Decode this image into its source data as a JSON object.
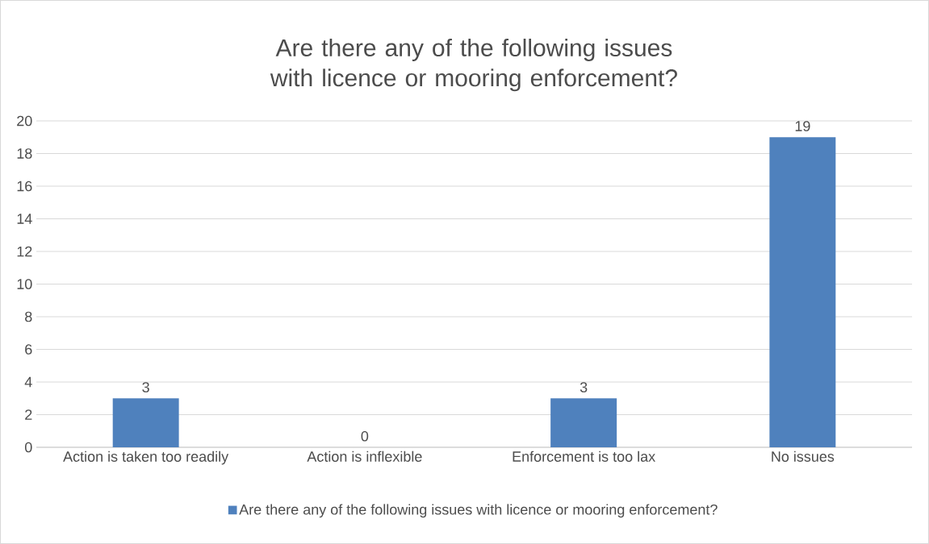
{
  "chart_data": {
    "type": "bar",
    "title": "Are there any of the following issues with licence or mooring enforcement?",
    "categories": [
      "Action is taken too readily",
      "Action is inflexible",
      "Enforcement is too lax",
      "No issues"
    ],
    "series": [
      {
        "name": "Are there any of the following issues with licence or mooring enforcement?",
        "color": "#4f81bd",
        "values": [
          3,
          0,
          3,
          19
        ]
      }
    ],
    "ylim": [
      0,
      20
    ],
    "yticks": [
      0,
      2,
      4,
      6,
      8,
      10,
      12,
      14,
      16,
      18,
      20
    ],
    "grid": "y",
    "legend": "bottom",
    "data_labels": true
  }
}
